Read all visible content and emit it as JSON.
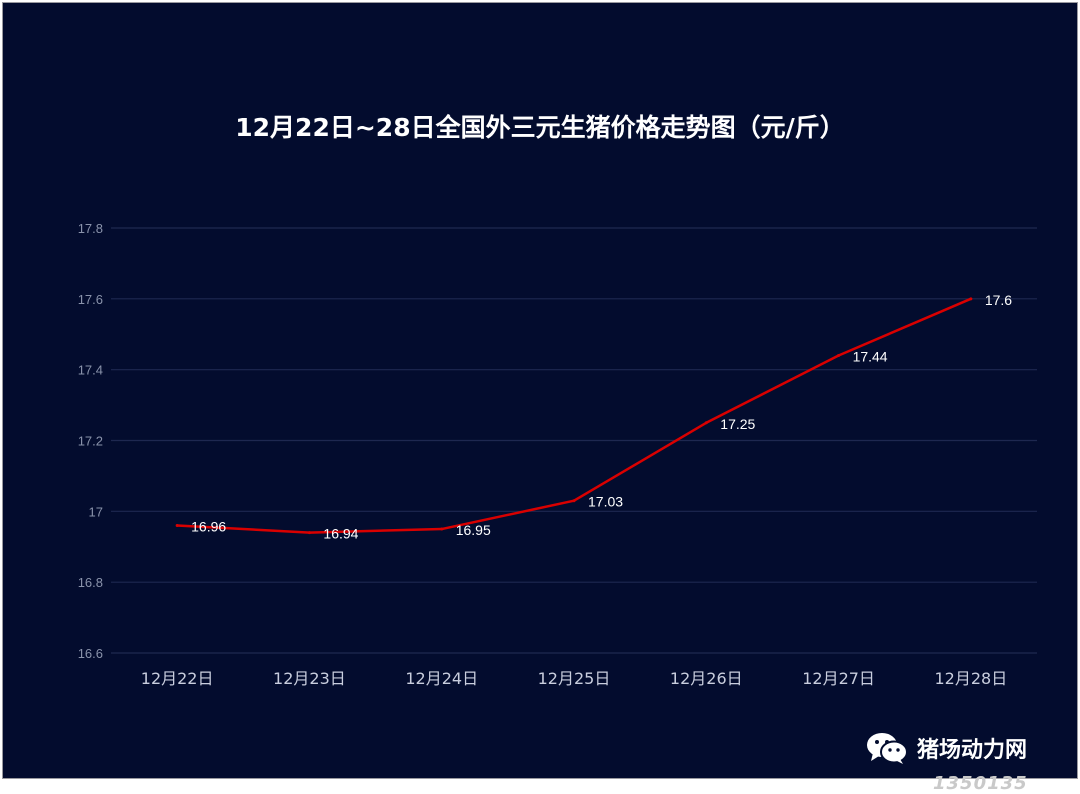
{
  "chart_data": {
    "type": "line",
    "title": "12月22日~28日全国外三元生猪价格走势图（元/斤）",
    "categories": [
      "12月22日",
      "12月23日",
      "12月24日",
      "12月25日",
      "12月26日",
      "12月27日",
      "12月28日"
    ],
    "series": [
      {
        "values": [
          16.96,
          16.94,
          16.95,
          17.03,
          17.25,
          17.44,
          17.6
        ],
        "color": "#d90000"
      }
    ],
    "data_labels": [
      "16.96",
      "16.94",
      "16.95",
      "17.03",
      "17.25",
      "17.44",
      "17.6"
    ],
    "ylim": [
      16.6,
      17.8
    ],
    "yticks": [
      "16.6",
      "16.8",
      "17",
      "17.2",
      "17.4",
      "17.6",
      "17.8"
    ],
    "grid": true,
    "background": "#030c2e"
  },
  "watermark": {
    "icon": "wechat-icon",
    "text": "猪场动力网",
    "sub_text": "1350135"
  }
}
